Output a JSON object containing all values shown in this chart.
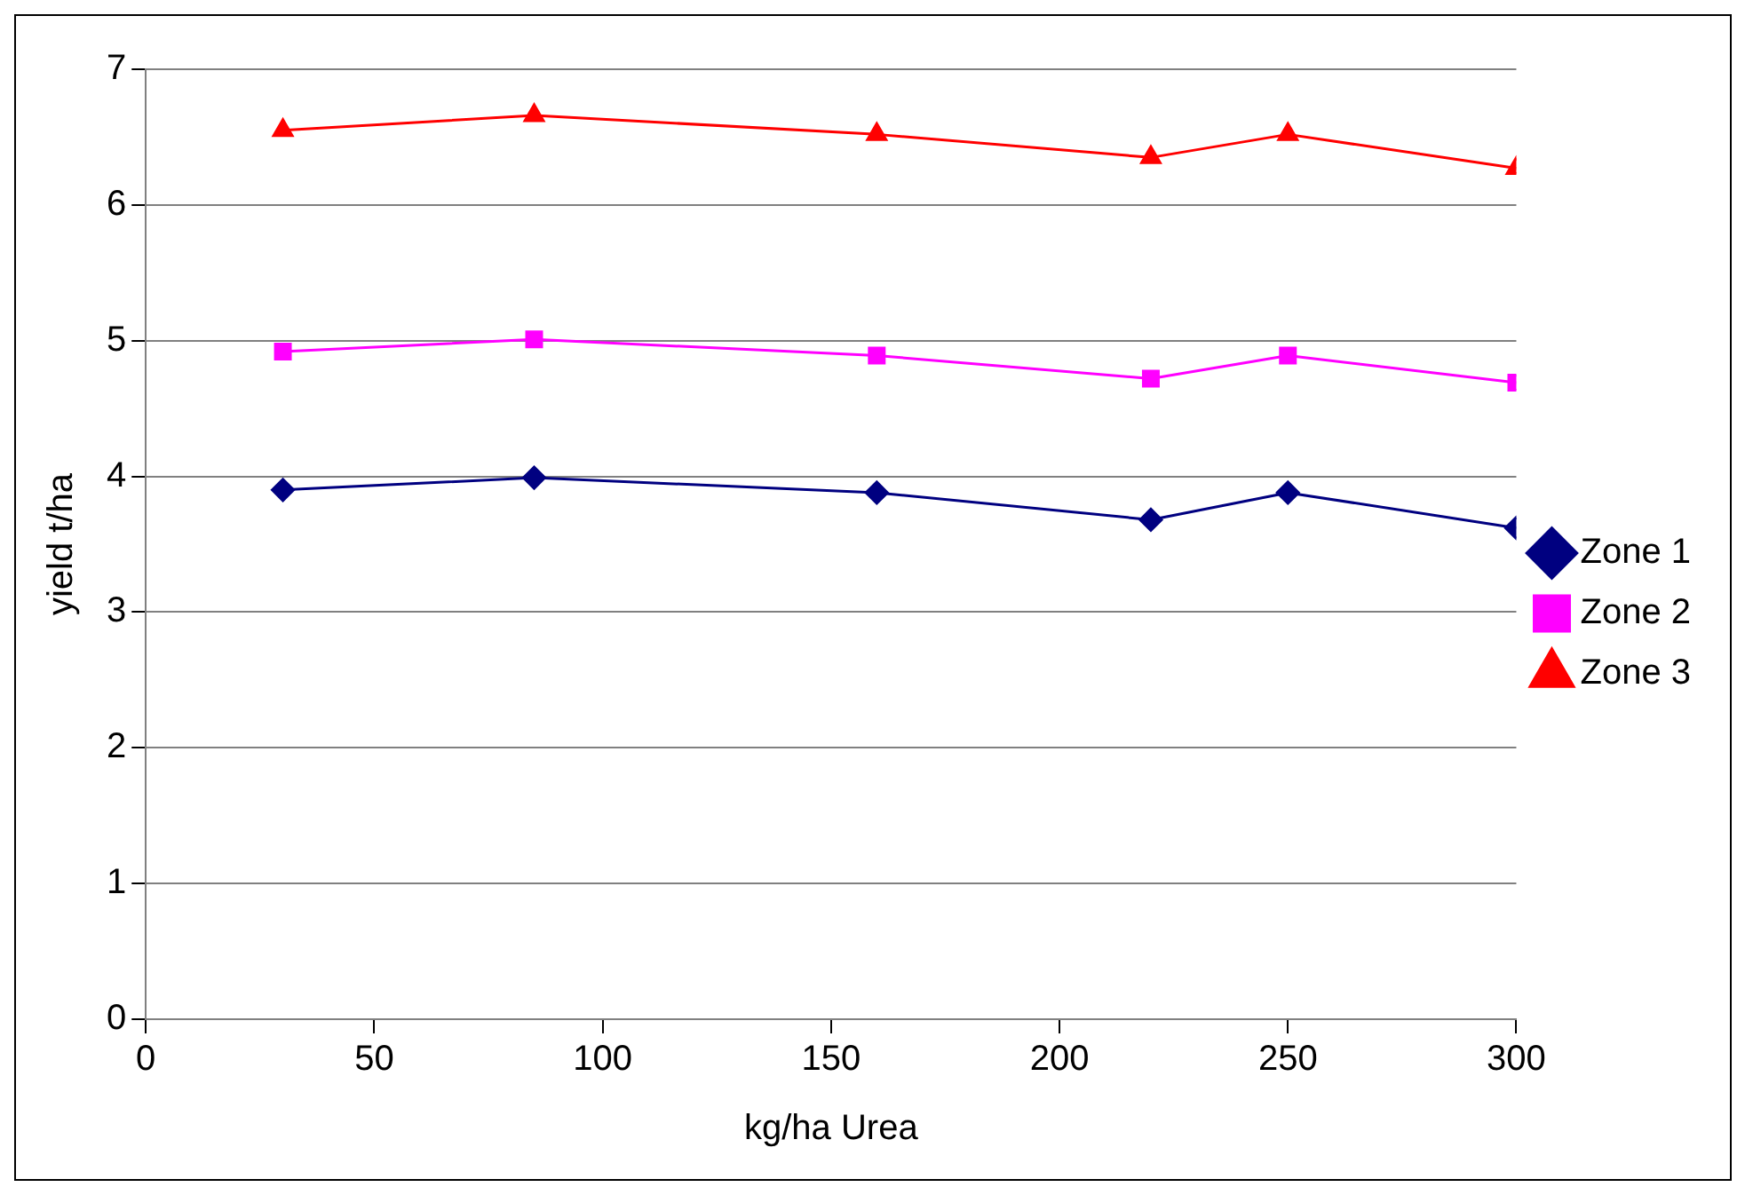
{
  "chart_data": {
    "type": "line",
    "xlabel": "kg/ha Urea",
    "ylabel": "yield t/ha",
    "x": [
      30,
      85,
      160,
      220,
      250,
      300
    ],
    "series": [
      {
        "name": "Zone 1",
        "color": "#000080",
        "marker": "diamond",
        "values": [
          3.9,
          3.99,
          3.88,
          3.68,
          3.88,
          3.62
        ]
      },
      {
        "name": "Zone 2",
        "color": "#ff00ff",
        "marker": "square",
        "values": [
          4.92,
          5.01,
          4.89,
          4.72,
          4.89,
          4.69
        ]
      },
      {
        "name": "Zone 3",
        "color": "#ff0000",
        "marker": "triangle",
        "values": [
          6.55,
          6.66,
          6.52,
          6.35,
          6.52,
          6.27
        ]
      }
    ],
    "xlim": [
      0,
      300
    ],
    "xticks": [
      0,
      50,
      100,
      150,
      200,
      250,
      300
    ],
    "ylim": [
      0,
      7
    ],
    "yticks": [
      0,
      1,
      2,
      3,
      4,
      5,
      6,
      7
    ],
    "grid": "y",
    "legend": "right"
  }
}
